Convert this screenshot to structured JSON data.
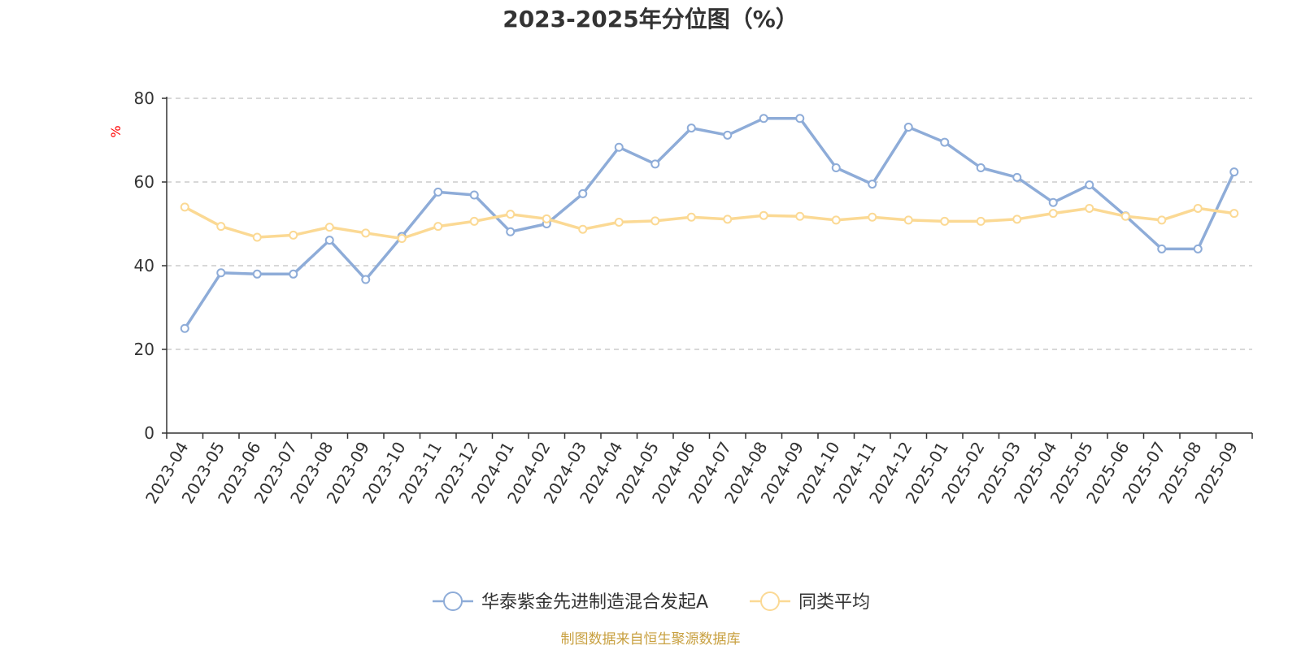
{
  "chart_data": {
    "type": "line",
    "title": "2023-2025年分位图（%）",
    "ylabel": "%",
    "ylim": [
      0,
      80
    ],
    "yticks": [
      0,
      20,
      40,
      60,
      80
    ],
    "grid": true,
    "legend_position": "bottom",
    "categories": [
      "2023-04",
      "2023-05",
      "2023-06",
      "2023-07",
      "2023-08",
      "2023-09",
      "2023-10",
      "2023-11",
      "2023-12",
      "2024-01",
      "2024-02",
      "2024-03",
      "2024-04",
      "2024-05",
      "2024-06",
      "2024-07",
      "2024-08",
      "2024-09",
      "2024-10",
      "2024-11",
      "2024-12",
      "2025-01",
      "2025-02",
      "2025-03",
      "2025-04",
      "2025-05",
      "2025-06",
      "2025-07",
      "2025-08",
      "2025-09"
    ],
    "series": [
      {
        "name": "华泰紫金先进制造混合发起A",
        "color": "#8eacd8",
        "values": [
          25.0,
          38.3,
          38.0,
          38.0,
          46.1,
          36.7,
          47.0,
          57.6,
          56.9,
          48.1,
          50.0,
          57.2,
          68.3,
          64.3,
          72.9,
          71.2,
          75.2,
          75.2,
          63.4,
          59.5,
          73.1,
          69.5,
          63.4,
          61.1,
          55.1,
          59.3,
          51.9,
          44.0,
          44.0,
          62.4
        ]
      },
      {
        "name": "同类平均",
        "color": "#fbd994",
        "values": [
          54.0,
          49.4,
          46.8,
          47.3,
          49.2,
          47.8,
          46.5,
          49.4,
          50.6,
          52.3,
          51.2,
          48.7,
          50.4,
          50.7,
          51.6,
          51.1,
          52.0,
          51.8,
          50.9,
          51.6,
          50.9,
          50.6,
          50.6,
          51.1,
          52.5,
          53.7,
          51.8,
          50.9,
          53.7,
          52.5
        ]
      }
    ]
  },
  "axis_color": "#333333",
  "grid_color": "#cccccc",
  "ylabel_color": "#ff0000",
  "source": {
    "text": "制图数据来自恒生聚源数据库",
    "color": "#c8a040"
  }
}
